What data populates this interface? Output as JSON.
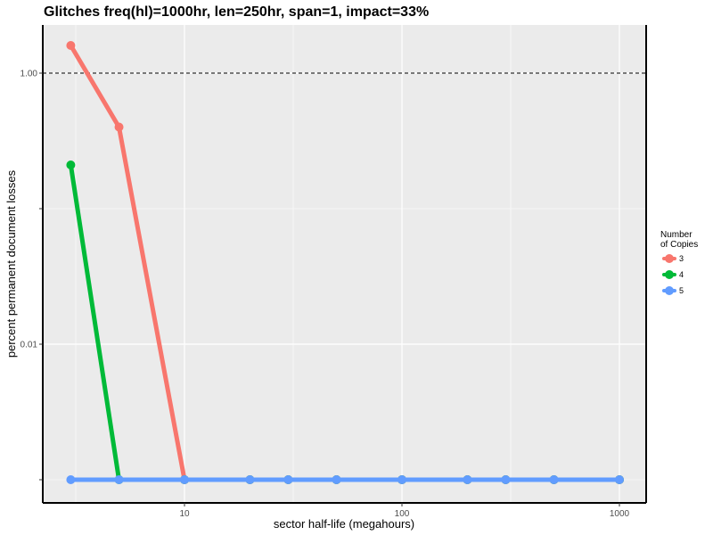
{
  "chart_data": {
    "type": "line",
    "title": "Glitches freq(hl)=1000hr, len=250hr, span=1, impact=33%",
    "xlabel": "sector half-life (megahours)",
    "ylabel": "percent permanent document losses",
    "x_scale": "log",
    "y_scale": "log",
    "x_ticks": [
      "10",
      "100",
      "1000"
    ],
    "y_ticks": [
      "1.00",
      "0.01"
    ],
    "reference_line": {
      "y": 1.0,
      "style": "dashed"
    },
    "grid": true,
    "legend": {
      "title": "Number\nof Copies",
      "placement": "right"
    },
    "series": [
      {
        "name": "3",
        "color": "#F8766D",
        "points": [
          [
            3,
            1.6
          ],
          [
            5,
            0.4
          ],
          [
            10,
            0.001
          ],
          [
            20,
            0.001
          ],
          [
            30,
            0.001
          ],
          [
            50,
            0.001
          ],
          [
            100,
            0.001
          ],
          [
            200,
            0.001
          ],
          [
            300,
            0.001
          ],
          [
            500,
            0.001
          ],
          [
            1000,
            0.001
          ]
        ]
      },
      {
        "name": "4",
        "color": "#00BA38",
        "points": [
          [
            3,
            0.21
          ],
          [
            5,
            0.001
          ],
          [
            10,
            0.001
          ],
          [
            20,
            0.001
          ],
          [
            30,
            0.001
          ],
          [
            50,
            0.001
          ],
          [
            100,
            0.001
          ],
          [
            200,
            0.001
          ],
          [
            300,
            0.001
          ],
          [
            500,
            0.001
          ],
          [
            1000,
            0.001
          ]
        ]
      },
      {
        "name": "5",
        "color": "#619CFF",
        "points": [
          [
            3,
            0.001
          ],
          [
            5,
            0.001
          ],
          [
            10,
            0.001
          ],
          [
            20,
            0.001
          ],
          [
            30,
            0.001
          ],
          [
            50,
            0.001
          ],
          [
            100,
            0.001
          ],
          [
            200,
            0.001
          ],
          [
            300,
            0.001
          ],
          [
            500,
            0.001
          ],
          [
            1000,
            0.001
          ]
        ]
      }
    ]
  }
}
